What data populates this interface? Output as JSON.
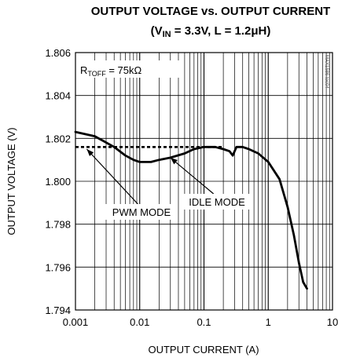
{
  "chart_data": {
    "type": "line",
    "title_main": "OUTPUT VOLTAGE vs. OUTPUT CURRENT",
    "title_sub": {
      "open": "(V",
      "sub": "IN",
      "rest": " = 3.3V, L = 1.2μH)"
    },
    "xlabel": "OUTPUT CURRENT (A)",
    "ylabel": "OUTPUT VOLTAGE (V)",
    "x_scale": "log",
    "xlim": [
      0.001,
      10
    ],
    "ylim": [
      1.794,
      1.806
    ],
    "x_ticks": [
      "0.001",
      "0.01",
      "0.1",
      "1",
      "10"
    ],
    "y_ticks": [
      "1.794",
      "1.796",
      "1.798",
      "1.800",
      "1.802",
      "1.804",
      "1.806"
    ],
    "grid": true,
    "condition_label": {
      "prefix": "R",
      "sub": "TOFF",
      "rest": " = 75kΩ"
    },
    "corner_code": "MAX1586 toc04",
    "series": [
      {
        "name": "IDLE MODE",
        "style": "solid",
        "x": [
          0.001,
          0.002,
          0.004,
          0.006,
          0.008,
          0.01,
          0.015,
          0.02,
          0.03,
          0.05,
          0.07,
          0.1,
          0.15,
          0.2,
          0.25,
          0.28,
          0.3,
          0.32,
          0.35,
          0.4,
          0.5,
          0.7,
          1.0,
          1.5,
          2.0,
          2.5,
          3.0,
          3.5,
          4.0
        ],
        "y": [
          1.8023,
          1.8021,
          1.8016,
          1.8012,
          1.801,
          1.8009,
          1.8009,
          1.801,
          1.8011,
          1.8013,
          1.8015,
          1.8016,
          1.8016,
          1.8015,
          1.8014,
          1.8012,
          1.8014,
          1.8016,
          1.8016,
          1.8016,
          1.8015,
          1.8013,
          1.8009,
          1.8001,
          1.7988,
          1.7975,
          1.7962,
          1.7953,
          1.795
        ]
      },
      {
        "name": "PWM MODE",
        "style": "dashed",
        "x": [
          0.001,
          0.002,
          0.005,
          0.01,
          0.02,
          0.05,
          0.1,
          0.2
        ],
        "y": [
          1.8016,
          1.8016,
          1.8016,
          1.8016,
          1.8016,
          1.8016,
          1.8016,
          1.8016
        ]
      }
    ],
    "annotations": [
      {
        "text": "PWM MODE",
        "points_to": [
          0.0015,
          1.8015
        ]
      },
      {
        "text": "IDLE MODE",
        "points_to": [
          0.03,
          1.8011
        ]
      }
    ]
  }
}
